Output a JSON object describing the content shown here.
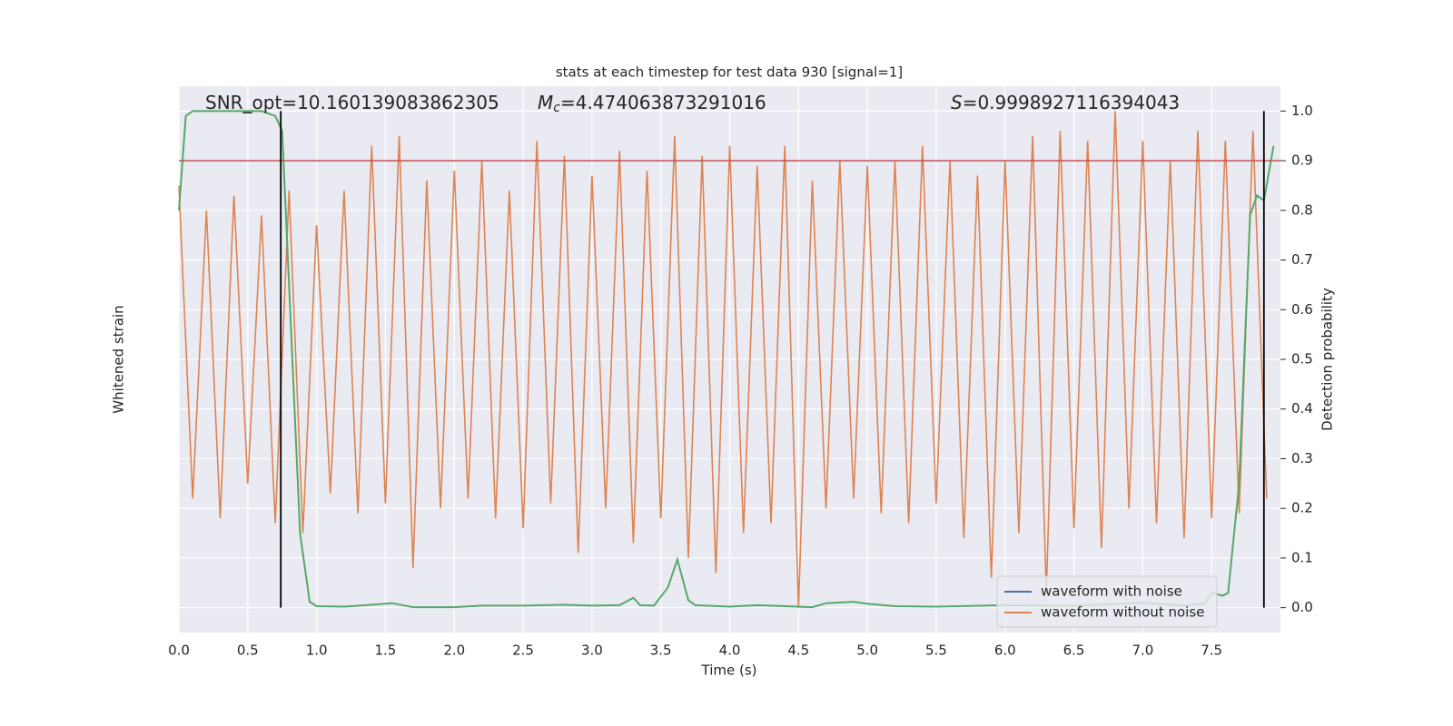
{
  "chart_data": {
    "type": "line",
    "title": "stats at each timestep for test data 930 [signal=1]",
    "xlabel": "Time (s)",
    "ylabel": "Whitened strain",
    "y2label": "Detection probability",
    "xlim": [
      0,
      8
    ],
    "ylim": [
      -0.05,
      1.05
    ],
    "y2lim": [
      -0.05,
      1.05
    ],
    "xticks": [
      {
        "value": 0,
        "label": "0.0"
      },
      0.5,
      {
        "value": 1,
        "label": "1.0"
      },
      1.5,
      {
        "value": 2,
        "label": "2.0"
      },
      2.5,
      {
        "value": 3,
        "label": "3.0"
      },
      3.5,
      {
        "value": 4,
        "label": "4.0"
      },
      4.5,
      {
        "value": 5,
        "label": "5.0"
      },
      5.5,
      {
        "value": 6,
        "label": "6.0"
      },
      6.5,
      {
        "value": 7,
        "label": "7.0"
      },
      7.5
    ],
    "y2ticks": [
      {
        "value": 0,
        "label": "0.0"
      },
      0.1,
      0.2,
      0.3,
      0.4,
      0.5,
      0.6,
      0.7,
      0.8,
      0.9,
      {
        "value": 1,
        "label": "1.0"
      }
    ],
    "grid": true,
    "legend": "lower right",
    "threshold": 0.9,
    "threshold_color": "#c44e52",
    "vlines": [
      0.74,
      7.88
    ],
    "vline_color": "#000000",
    "annotations": [
      {
        "text": "SNR_opt=10.160139083862305"
      },
      {
        "symbol": "M",
        "subscript": "c",
        "text": "=4.474063873291016"
      },
      {
        "symbol": "S",
        "text": "=0.9998927116394043"
      }
    ],
    "series": [
      {
        "name": "waveform with noise",
        "color": "#4c72b0",
        "axis": "y",
        "x": [],
        "values": []
      },
      {
        "name": "waveform without noise",
        "color": "#dd8452",
        "axis": "y",
        "x": [
          0,
          0.1,
          0.2,
          0.3,
          0.4,
          0.5,
          0.6,
          0.7,
          0.8,
          0.9,
          1,
          1.1,
          1.2,
          1.3,
          1.4,
          1.5,
          1.6,
          1.7,
          1.8,
          1.9,
          2,
          2.1,
          2.2,
          2.3,
          2.4,
          2.5,
          2.6,
          2.7,
          2.8,
          2.9,
          3,
          3.1,
          3.2,
          3.3,
          3.4,
          3.5,
          3.6,
          3.7,
          3.8,
          3.9,
          4,
          4.1,
          4.2,
          4.3,
          4.4,
          4.5,
          4.6,
          4.7,
          4.8,
          4.9,
          5,
          5.1,
          5.2,
          5.3,
          5.4,
          5.5,
          5.6,
          5.7,
          5.8,
          5.9,
          6,
          6.1,
          6.2,
          6.3,
          6.4,
          6.5,
          6.6,
          6.7,
          6.8,
          6.9,
          7,
          7.1,
          7.2,
          7.3,
          7.4,
          7.5,
          7.6,
          7.7,
          7.8,
          7.9
        ],
        "values": [
          0.85,
          0.22,
          0.8,
          0.18,
          0.83,
          0.25,
          0.79,
          0.17,
          0.84,
          0.15,
          0.77,
          0.23,
          0.84,
          0.19,
          0.93,
          0.21,
          0.95,
          0.08,
          0.86,
          0.2,
          0.88,
          0.22,
          0.9,
          0.18,
          0.84,
          0.16,
          0.94,
          0.21,
          0.91,
          0.11,
          0.87,
          0.2,
          0.92,
          0.13,
          0.88,
          0.18,
          0.95,
          0.1,
          0.91,
          0.07,
          0.93,
          0.15,
          0.89,
          0.17,
          0.93,
          0,
          0.86,
          0.2,
          0.9,
          0.22,
          0.89,
          0.19,
          0.9,
          0.17,
          0.93,
          0.21,
          0.9,
          0.14,
          0.87,
          0.06,
          0.9,
          0.15,
          0.95,
          0.03,
          0.96,
          0.16,
          0.94,
          0.12,
          1,
          0.2,
          0.94,
          0.17,
          0.9,
          0.14,
          0.96,
          0.18,
          0.94,
          0.19,
          0.96,
          0.22
        ]
      },
      {
        "color": "#55a868",
        "axis": "y2",
        "x": [
          0,
          0.05,
          0.1,
          0.3,
          0.5,
          0.6,
          0.7,
          0.75,
          0.8,
          0.88,
          0.95,
          1,
          1.2,
          1.4,
          1.55,
          1.7,
          2,
          2.2,
          2.5,
          2.8,
          3,
          3.2,
          3.3,
          3.35,
          3.45,
          3.55,
          3.62,
          3.7,
          3.75,
          4,
          4.2,
          4.6,
          4.7,
          4.9,
          5,
          5.2,
          5.5,
          6,
          6.5,
          7,
          7.3,
          7.45,
          7.5,
          7.58,
          7.62,
          7.7,
          7.78,
          7.83,
          7.88,
          7.95
        ],
        "values": [
          0.8,
          0.99,
          1,
          1,
          1,
          1,
          0.99,
          0.96,
          0.65,
          0.15,
          0.012,
          0.003,
          0.002,
          0.006,
          0.009,
          0.001,
          0.001,
          0.004,
          0.004,
          0.006,
          0.004,
          0.005,
          0.02,
          0.005,
          0.004,
          0.04,
          0.097,
          0.015,
          0.005,
          0.002,
          0.005,
          0.001,
          0.009,
          0.012,
          0.008,
          0.003,
          0.002,
          0.005,
          0.004,
          0.01,
          0.004,
          0.008,
          0.03,
          0.024,
          0.03,
          0.25,
          0.79,
          0.83,
          0.82,
          0.93
        ]
      }
    ]
  }
}
